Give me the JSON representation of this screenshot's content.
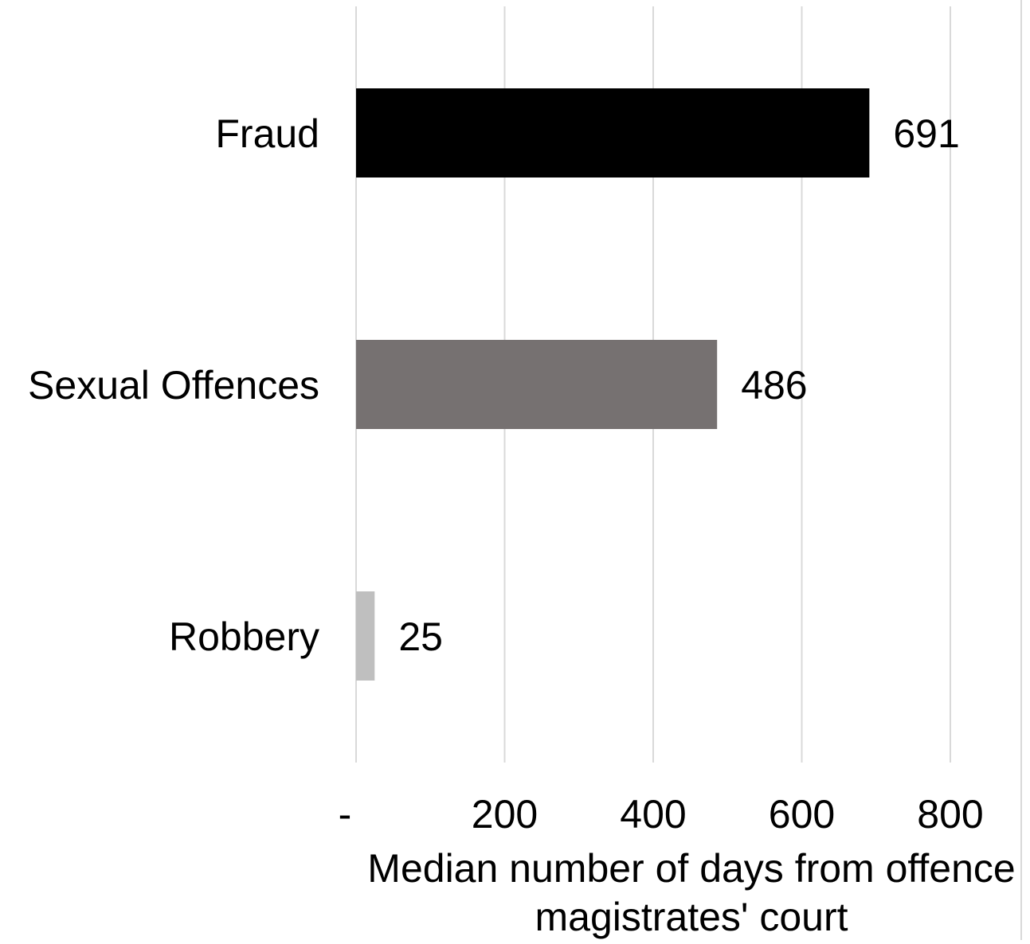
{
  "chart_data": {
    "type": "bar",
    "orientation": "horizontal",
    "categories": [
      "Fraud",
      "Sexual Offences",
      "Robbery"
    ],
    "values": [
      691,
      486,
      25
    ],
    "data_labels": [
      "691",
      "486",
      "25"
    ],
    "bar_colors": [
      "#000000",
      "#767171",
      "#bfbfbf"
    ],
    "xlim": [
      0,
      900
    ],
    "x_ticks": [
      0,
      200,
      400,
      600,
      800
    ],
    "x_tick_labels": [
      "-",
      "200",
      "400",
      "600",
      "800"
    ],
    "xlabel_lines": [
      "Median number of days from offence",
      "magistrates' court"
    ],
    "title": "",
    "grid": true,
    "gridline_color": "#d9d9d9",
    "legend": "none"
  }
}
